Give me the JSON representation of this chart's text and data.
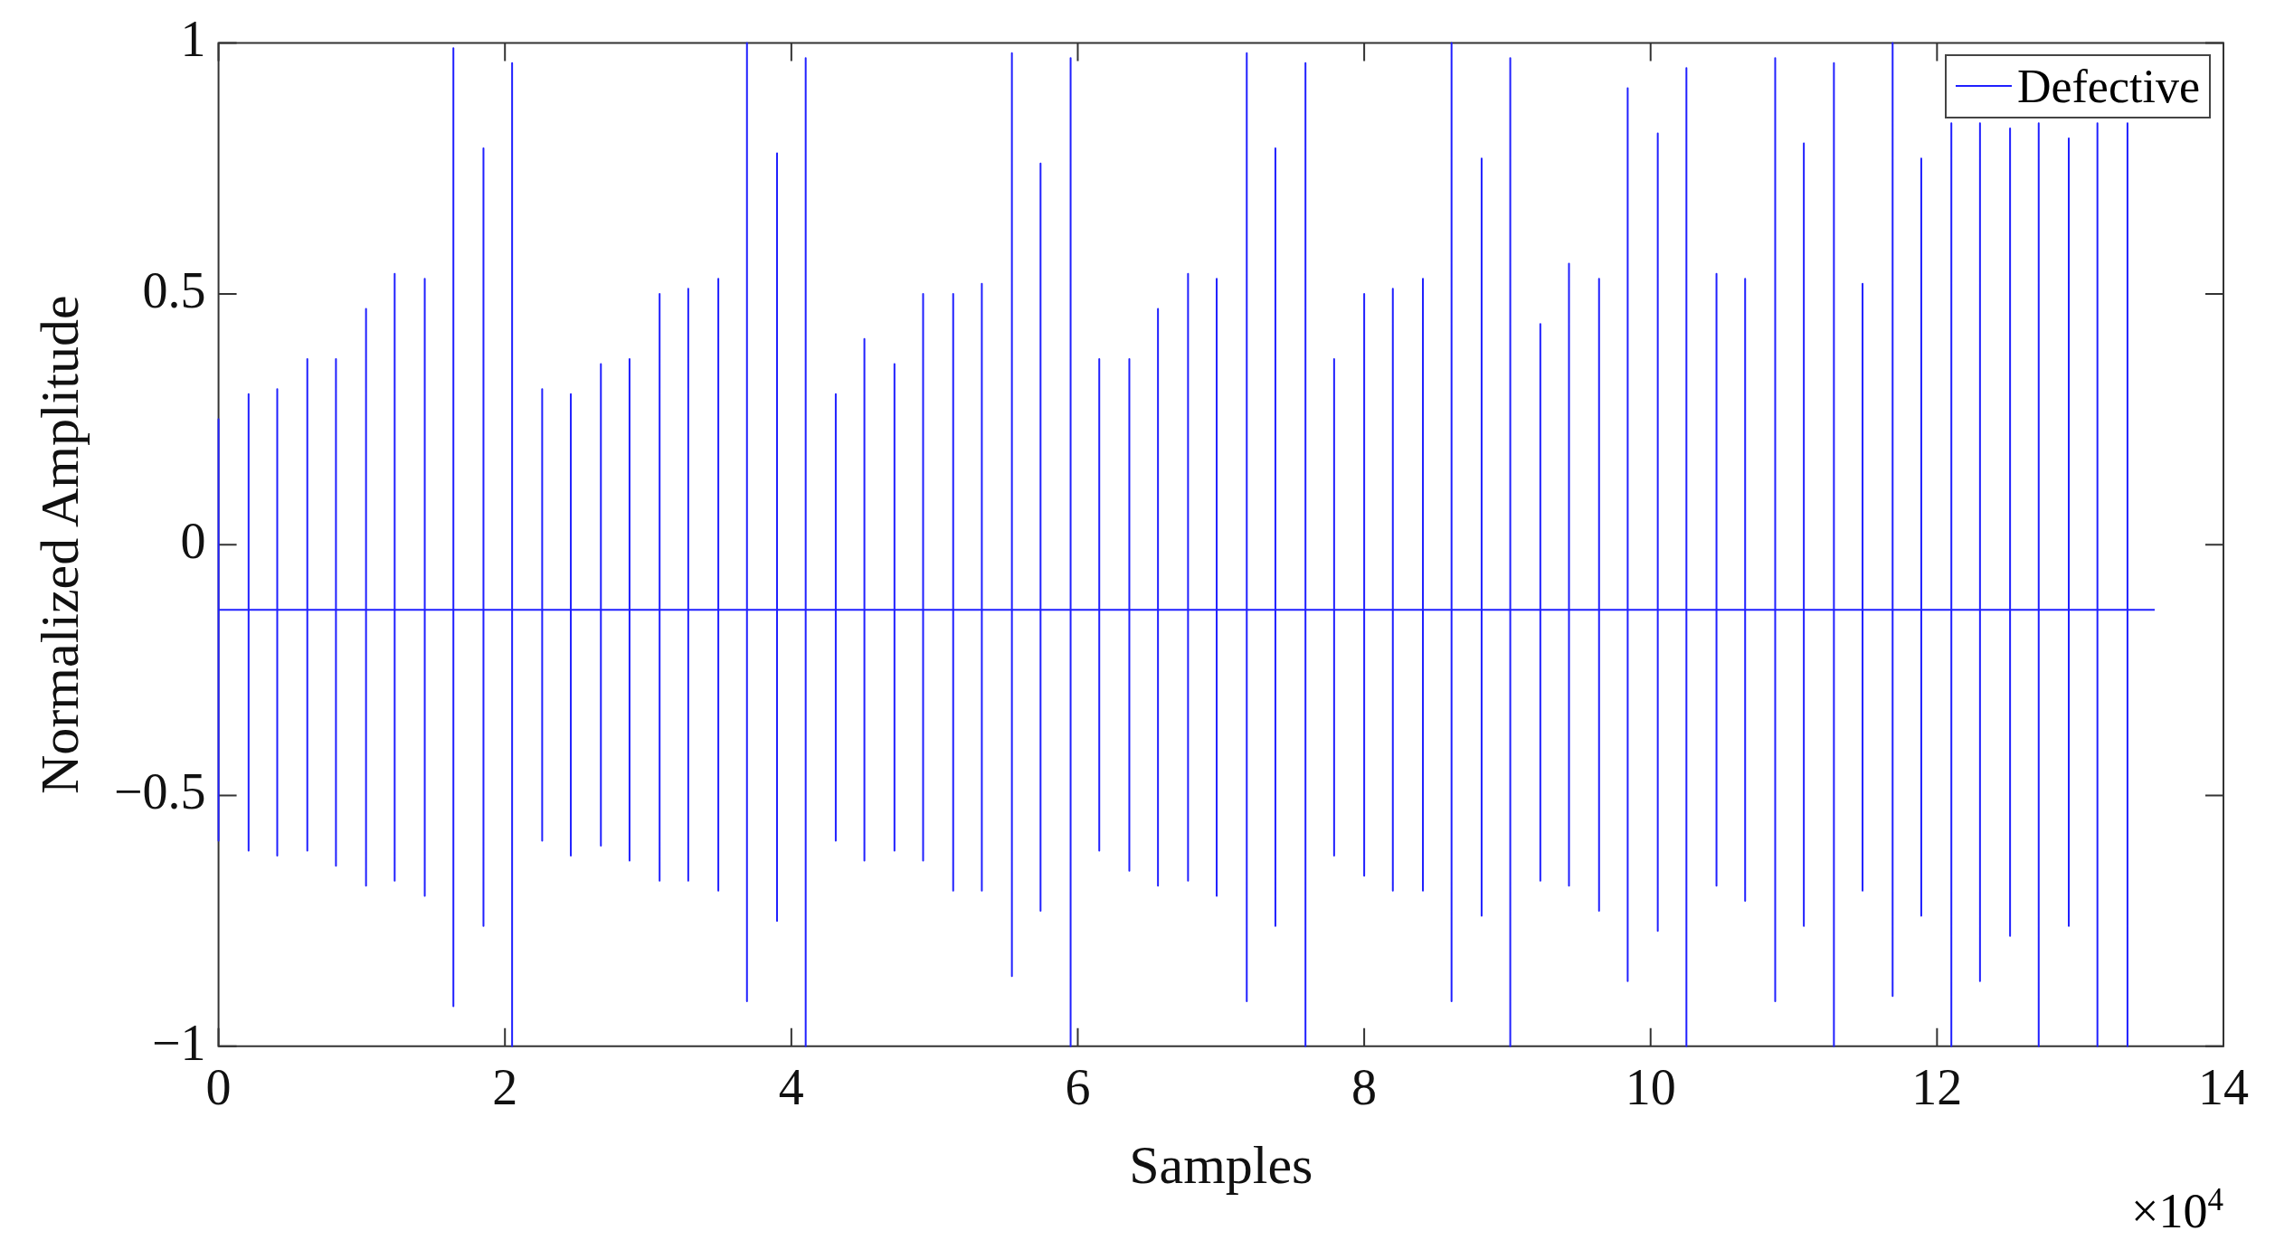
{
  "chart_data": {
    "type": "line",
    "xlabel": "Samples",
    "ylabel": "Normalized Amplitude",
    "annotations": [
      "×10$^{4}$"
    ],
    "legend": "top right",
    "xlim": [
      0,
      14
    ],
    "xticks": [
      0,
      2,
      4,
      6,
      8,
      10,
      12,
      14
    ],
    "ylim": [
      -1,
      1
    ],
    "yticks": [
      {
        "value": -1,
        "label": "−1"
      },
      {
        "value": -0.5,
        "label": "−0.5"
      },
      0,
      0.5,
      1
    ],
    "series": [
      {
        "name": "Defective",
        "color": "#2020ff",
        "x": [
          0,
          0,
          0,
          0,
          0.21,
          0.21,
          0.21,
          0.21,
          0.41,
          0.41,
          0.41,
          0.41,
          0.62,
          0.62,
          0.62,
          0.62,
          0.82,
          0.82,
          0.82,
          0.82,
          1.03,
          1.03,
          1.03,
          1.03,
          1.23,
          1.23,
          1.23,
          1.23,
          1.44,
          1.44,
          1.44,
          1.44,
          1.64,
          1.64,
          1.64,
          1.64,
          1.85,
          1.85,
          1.85,
          1.85,
          2.05,
          2.05,
          2.05,
          2.05,
          2.26,
          2.26,
          2.26,
          2.26,
          2.46,
          2.46,
          2.46,
          2.46,
          2.67,
          2.67,
          2.67,
          2.67,
          2.87,
          2.87,
          2.87,
          2.87,
          3.08,
          3.08,
          3.08,
          3.08,
          3.28,
          3.28,
          3.28,
          3.28,
          3.49,
          3.49,
          3.49,
          3.49,
          3.69,
          3.69,
          3.69,
          3.69,
          3.9,
          3.9,
          3.9,
          3.9,
          4.1,
          4.1,
          4.1,
          4.1,
          4.31,
          4.31,
          4.31,
          4.31,
          4.51,
          4.51,
          4.51,
          4.51,
          4.72,
          4.72,
          4.72,
          4.72,
          4.92,
          4.92,
          4.92,
          4.92,
          5.13,
          5.13,
          5.13,
          5.13,
          5.33,
          5.33,
          5.33,
          5.33,
          5.54,
          5.54,
          5.54,
          5.54,
          5.74,
          5.74,
          5.74,
          5.74,
          5.95,
          5.95,
          5.95,
          5.95,
          6.15,
          6.15,
          6.15,
          6.15,
          6.36,
          6.36,
          6.36,
          6.36,
          6.56,
          6.56,
          6.56,
          6.56,
          6.77,
          6.77,
          6.77,
          6.77,
          6.97,
          6.97,
          6.97,
          6.97,
          7.18,
          7.18,
          7.18,
          7.18,
          7.38,
          7.38,
          7.38,
          7.38,
          7.59,
          7.59,
          7.59,
          7.59,
          7.79,
          7.79,
          7.79,
          7.79,
          8,
          8,
          8,
          8,
          8.2,
          8.2,
          8.2,
          8.2,
          8.41,
          8.41,
          8.41,
          8.41,
          8.61,
          8.61,
          8.61,
          8.61,
          8.82,
          8.82,
          8.82,
          8.82,
          9.02,
          9.02,
          9.02,
          9.02,
          9.23,
          9.23,
          9.23,
          9.23,
          9.43,
          9.43,
          9.43,
          9.43,
          9.64,
          9.64,
          9.64,
          9.64,
          9.84,
          9.84,
          9.84,
          9.84,
          10.05,
          10.05,
          10.05,
          10.05,
          10.25,
          10.25,
          10.25,
          10.25,
          10.46,
          10.46,
          10.46,
          10.46,
          10.66,
          10.66,
          10.66,
          10.66,
          10.87,
          10.87,
          10.87,
          10.87,
          11.07,
          11.07,
          11.07,
          11.07,
          11.28,
          11.28,
          11.28,
          11.28,
          11.48,
          11.48,
          11.48,
          11.48,
          11.69,
          11.69,
          11.69,
          11.69,
          11.89,
          11.89,
          11.89,
          11.89,
          12.1,
          12.1,
          12.1,
          12.1,
          12.3,
          12.3,
          12.3,
          12.3,
          12.51,
          12.51,
          12.51,
          12.51,
          12.71,
          12.71,
          12.71,
          12.71,
          12.92,
          12.92,
          12.92,
          12.92,
          13.12,
          13.12,
          13.12,
          13.12,
          13.33,
          13.33,
          13.33,
          13.33,
          13.52
        ],
        "values": [
          -0.13,
          0.25,
          -0.59,
          -0.13,
          -0.13,
          0.3,
          -0.61,
          -0.13,
          -0.13,
          0.31,
          -0.62,
          -0.13,
          -0.13,
          0.37,
          -0.61,
          -0.13,
          -0.13,
          0.37,
          -0.64,
          -0.13,
          -0.13,
          0.47,
          -0.68,
          -0.13,
          -0.13,
          0.54,
          -0.67,
          -0.13,
          -0.13,
          0.53,
          -0.7,
          -0.13,
          -0.13,
          0.99,
          -0.92,
          -0.13,
          -0.13,
          0.79,
          -0.76,
          -0.13,
          -0.13,
          0.96,
          -1,
          -0.13,
          -0.13,
          0.31,
          -0.59,
          -0.13,
          -0.13,
          0.3,
          -0.62,
          -0.13,
          -0.13,
          0.36,
          -0.6,
          -0.13,
          -0.13,
          0.37,
          -0.63,
          -0.13,
          -0.13,
          0.5,
          -0.67,
          -0.13,
          -0.13,
          0.51,
          -0.67,
          -0.13,
          -0.13,
          0.53,
          -0.69,
          -0.13,
          -0.13,
          1,
          -0.91,
          -0.13,
          -0.13,
          0.78,
          -0.75,
          -0.13,
          -0.13,
          0.97,
          -1,
          -0.13,
          -0.13,
          0.3,
          -0.59,
          -0.13,
          -0.13,
          0.41,
          -0.63,
          -0.13,
          -0.13,
          0.36,
          -0.61,
          -0.13,
          -0.13,
          0.5,
          -0.63,
          -0.13,
          -0.13,
          0.5,
          -0.69,
          -0.13,
          -0.13,
          0.52,
          -0.69,
          -0.13,
          -0.13,
          0.98,
          -0.86,
          -0.13,
          -0.13,
          0.76,
          -0.73,
          -0.13,
          -0.13,
          0.97,
          -1,
          -0.13,
          -0.13,
          0.37,
          -0.61,
          -0.13,
          -0.13,
          0.37,
          -0.65,
          -0.13,
          -0.13,
          0.47,
          -0.68,
          -0.13,
          -0.13,
          0.54,
          -0.67,
          -0.13,
          -0.13,
          0.53,
          -0.7,
          -0.13,
          -0.13,
          0.98,
          -0.91,
          -0.13,
          -0.13,
          0.79,
          -0.76,
          -0.13,
          -0.13,
          0.96,
          -1,
          -0.13,
          -0.13,
          0.37,
          -0.62,
          -0.13,
          -0.13,
          0.5,
          -0.66,
          -0.13,
          -0.13,
          0.51,
          -0.69,
          -0.13,
          -0.13,
          0.53,
          -0.69,
          -0.13,
          -0.13,
          1,
          -0.91,
          -0.13,
          -0.13,
          0.77,
          -0.74,
          -0.13,
          -0.13,
          0.97,
          -1,
          -0.13,
          -0.13,
          0.44,
          -0.67,
          -0.13,
          -0.13,
          0.56,
          -0.68,
          -0.13,
          -0.13,
          0.53,
          -0.73,
          -0.13,
          -0.13,
          0.91,
          -0.87,
          -0.13,
          -0.13,
          0.82,
          -0.77,
          -0.13,
          -0.13,
          0.95,
          -1,
          -0.13,
          -0.13,
          0.54,
          -0.68,
          -0.13,
          -0.13,
          0.53,
          -0.71,
          -0.13,
          -0.13,
          0.97,
          -0.91,
          -0.13,
          -0.13,
          0.8,
          -0.76,
          -0.13,
          -0.13,
          0.96,
          -1,
          -0.13,
          -0.13,
          0.52,
          -0.69,
          -0.13,
          -0.13,
          1,
          -0.9,
          -0.13,
          -0.13,
          0.77,
          -0.74,
          -0.13,
          -0.13,
          0.84,
          -1,
          -0.13,
          -0.13,
          0.84,
          -0.87,
          -0.13,
          -0.13,
          0.83,
          -0.78,
          -0.13,
          -0.13,
          0.84,
          -1,
          -0.13,
          -0.13,
          0.81,
          -0.76,
          -0.13,
          -0.13,
          0.84,
          -1,
          -0.13,
          -0.13,
          0.84,
          -1,
          -0.13,
          -0.13
        ]
      }
    ]
  }
}
